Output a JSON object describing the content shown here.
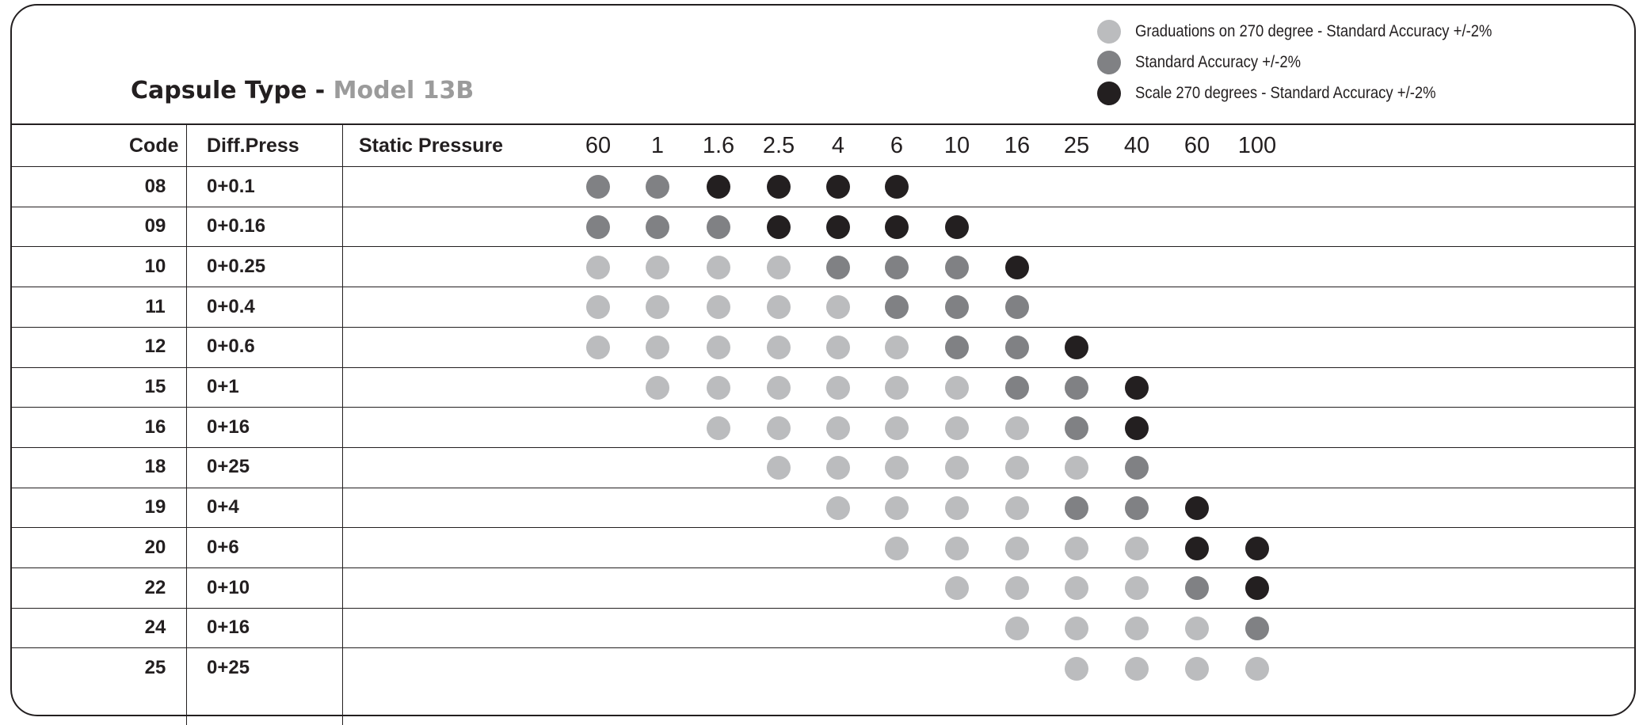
{
  "title": {
    "prefix": "Capsule Type - ",
    "model": "Model 13B"
  },
  "colors": {
    "graduations": "#bbbcbe",
    "standard": "#808184",
    "scale": "#231f20",
    "model_text": "#9b9b9b",
    "line": "#231f20"
  },
  "legend": [
    {
      "key": "graduations",
      "label": "Graduations on 270 degree - Standard Accuracy +/-2%"
    },
    {
      "key": "standard",
      "label": "Standard Accuracy +/-2%"
    },
    {
      "key": "scale",
      "label": "Scale 270 degrees - Standard Accuracy +/-2%"
    }
  ],
  "table": {
    "headers": {
      "code": "Code",
      "diff": "Diff.Press",
      "static": "Static Pressure"
    },
    "pressure_columns": [
      "60",
      "1",
      "1.6",
      "2.5",
      "4",
      "6",
      "10",
      "16",
      "25",
      "40",
      "60",
      "100"
    ],
    "rows": [
      {
        "code": "08",
        "diff": "0+0.1",
        "dots": [
          "standard",
          "standard",
          "scale",
          "scale",
          "scale",
          "scale",
          null,
          null,
          null,
          null,
          null,
          null
        ]
      },
      {
        "code": "09",
        "diff": "0+0.16",
        "dots": [
          "standard",
          "standard",
          "standard",
          "scale",
          "scale",
          "scale",
          "scale",
          null,
          null,
          null,
          null,
          null
        ]
      },
      {
        "code": "10",
        "diff": "0+0.25",
        "dots": [
          "graduations",
          "graduations",
          "graduations",
          "graduations",
          "standard",
          "standard",
          "standard",
          "scale",
          null,
          null,
          null,
          null
        ]
      },
      {
        "code": "11",
        "diff": "0+0.4",
        "dots": [
          "graduations",
          "graduations",
          "graduations",
          "graduations",
          "graduations",
          "standard",
          "standard",
          "standard",
          null,
          null,
          null,
          null
        ]
      },
      {
        "code": "12",
        "diff": "0+0.6",
        "dots": [
          "graduations",
          "graduations",
          "graduations",
          "graduations",
          "graduations",
          "graduations",
          "standard",
          "standard",
          "scale",
          null,
          null,
          null
        ]
      },
      {
        "code": "15",
        "diff": "0+1",
        "dots": [
          null,
          "graduations",
          "graduations",
          "graduations",
          "graduations",
          "graduations",
          "graduations",
          "standard",
          "standard",
          "scale",
          null,
          null
        ]
      },
      {
        "code": "16",
        "diff": "0+16",
        "dots": [
          null,
          null,
          "graduations",
          "graduations",
          "graduations",
          "graduations",
          "graduations",
          "graduations",
          "standard",
          "scale",
          null,
          null
        ]
      },
      {
        "code": "18",
        "diff": "0+25",
        "dots": [
          null,
          null,
          null,
          "graduations",
          "graduations",
          "graduations",
          "graduations",
          "graduations",
          "graduations",
          "standard",
          null,
          null
        ]
      },
      {
        "code": "19",
        "diff": "0+4",
        "dots": [
          null,
          null,
          null,
          null,
          "graduations",
          "graduations",
          "graduations",
          "graduations",
          "standard",
          "standard",
          "scale",
          null
        ]
      },
      {
        "code": "20",
        "diff": "0+6",
        "dots": [
          null,
          null,
          null,
          null,
          null,
          "graduations",
          "graduations",
          "graduations",
          "graduations",
          "graduations",
          "scale",
          "scale"
        ]
      },
      {
        "code": "22",
        "diff": "0+10",
        "dots": [
          null,
          null,
          null,
          null,
          null,
          null,
          "graduations",
          "graduations",
          "graduations",
          "graduations",
          "standard",
          "scale"
        ]
      },
      {
        "code": "24",
        "diff": "0+16",
        "dots": [
          null,
          null,
          null,
          null,
          null,
          null,
          null,
          "graduations",
          "graduations",
          "graduations",
          "graduations",
          "standard"
        ]
      },
      {
        "code": "25",
        "diff": "0+25",
        "dots": [
          null,
          null,
          null,
          null,
          null,
          null,
          null,
          null,
          "graduations",
          "graduations",
          "graduations",
          "graduations"
        ]
      }
    ]
  }
}
